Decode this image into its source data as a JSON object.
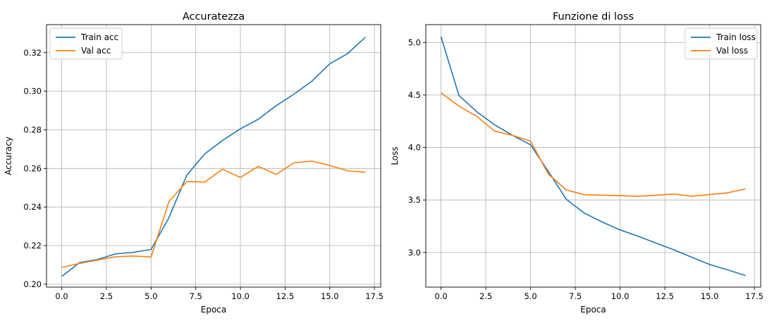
{
  "chart_data": [
    {
      "type": "line",
      "title": "Accuratezza",
      "xlabel": "Epoca",
      "ylabel": "Accuracy",
      "xlim": [
        -0.85,
        17.85
      ],
      "ylim": [
        0.1985,
        0.3345
      ],
      "xticks": [
        0.0,
        2.5,
        5.0,
        7.5,
        10.0,
        12.5,
        15.0,
        17.5
      ],
      "xtick_labels": [
        "0.0",
        "2.5",
        "5.0",
        "7.5",
        "10.0",
        "12.5",
        "15.0",
        "17.5"
      ],
      "yticks": [
        0.2,
        0.22,
        0.24,
        0.26,
        0.28,
        0.3,
        0.32
      ],
      "ytick_labels": [
        "0.20",
        "0.22",
        "0.24",
        "0.26",
        "0.28",
        "0.30",
        "0.32"
      ],
      "grid": true,
      "legend": "top-left",
      "x": [
        0,
        1,
        2,
        3,
        4,
        5,
        6,
        7,
        8,
        9,
        10,
        11,
        12,
        13,
        14,
        15,
        16,
        17
      ],
      "series": [
        {
          "name": "Train acc",
          "color": "#1f77b4",
          "values": [
            0.204,
            0.2112,
            0.2128,
            0.2157,
            0.2165,
            0.218,
            0.2345,
            0.2565,
            0.2675,
            0.2745,
            0.2805,
            0.2855,
            0.2925,
            0.2985,
            0.3052,
            0.3142,
            0.3195,
            0.328
          ]
        },
        {
          "name": "Val acc",
          "color": "#ff7f0e",
          "values": [
            0.2087,
            0.2108,
            0.2125,
            0.2142,
            0.2146,
            0.2141,
            0.2428,
            0.2532,
            0.2529,
            0.2596,
            0.2553,
            0.2611,
            0.2569,
            0.2629,
            0.2638,
            0.2615,
            0.2588,
            0.258
          ]
        }
      ]
    },
    {
      "type": "line",
      "title": "Funzione di loss",
      "xlabel": "Epoca",
      "ylabel": "Loss",
      "xlim": [
        -0.85,
        17.85
      ],
      "ylim": [
        2.67,
        5.17
      ],
      "xticks": [
        0.0,
        2.5,
        5.0,
        7.5,
        10.0,
        12.5,
        15.0,
        17.5
      ],
      "xtick_labels": [
        "0.0",
        "2.5",
        "5.0",
        "7.5",
        "10.0",
        "12.5",
        "15.0",
        "17.5"
      ],
      "yticks": [
        3.0,
        3.5,
        4.0,
        4.5,
        5.0
      ],
      "ytick_labels": [
        "3.0",
        "3.5",
        "4.0",
        "4.5",
        "5.0"
      ],
      "grid": true,
      "legend": "top-right",
      "x": [
        0,
        1,
        2,
        3,
        4,
        5,
        6,
        7,
        8,
        9,
        10,
        11,
        12,
        13,
        14,
        15,
        16,
        17
      ],
      "series": [
        {
          "name": "Train loss",
          "color": "#1f77b4",
          "values": [
            5.055,
            4.495,
            4.34,
            4.215,
            4.115,
            4.025,
            3.77,
            3.505,
            3.375,
            3.29,
            3.215,
            3.155,
            3.09,
            3.025,
            2.955,
            2.885,
            2.835,
            2.78
          ]
        },
        {
          "name": "Val loss",
          "color": "#ff7f0e",
          "values": [
            4.52,
            4.395,
            4.295,
            4.155,
            4.115,
            4.06,
            3.745,
            3.595,
            3.55,
            3.545,
            3.542,
            3.535,
            3.545,
            3.557,
            3.535,
            3.552,
            3.568,
            3.605
          ]
        }
      ]
    }
  ]
}
